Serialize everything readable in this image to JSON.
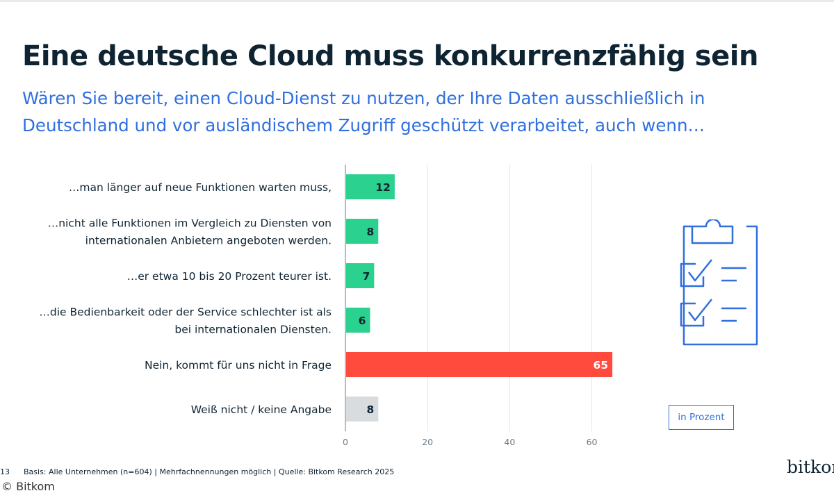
{
  "header": {
    "title": "Eine deutsche Cloud muss konkurrenzfähig sein",
    "subtitle": "Wären Sie bereit, einen Cloud-Dienst zu nutzen, der Ihre Daten ausschließlich in Deutschland und vor ausländischem Zugriff geschützt verarbeitet, auch wenn…"
  },
  "chart_data": {
    "type": "bar",
    "orientation": "horizontal",
    "title": "Eine deutsche Cloud muss konkurrenzfähig sein",
    "categories": [
      [
        "…man länger auf neue Funktionen warten muss,"
      ],
      [
        "…nicht alle Funktionen im Vergleich zu Diensten von",
        "internationalen Anbietern angeboten werden."
      ],
      [
        "…er etwa 10 bis 20 Prozent teurer ist."
      ],
      [
        "…die Bedienbarkeit oder der Service schlechter ist als",
        "bei internationalen Diensten."
      ],
      [
        "Nein, kommt für uns nicht in Frage"
      ],
      [
        "Weiß nicht / keine Angabe"
      ]
    ],
    "values": [
      12,
      8,
      7,
      6,
      65,
      8
    ],
    "bar_colors": [
      "#2bd18e",
      "#2bd18e",
      "#2bd18e",
      "#2bd18e",
      "#ff4b3e",
      "#d9dcdf"
    ],
    "label_colors": [
      "#0f2433",
      "#0f2433",
      "#0f2433",
      "#0f2433",
      "#ffffff",
      "#0f2433"
    ],
    "xlim": [
      0,
      66
    ],
    "xticks": [
      0,
      20,
      40,
      60
    ],
    "grid": true,
    "unit": "in Prozent"
  },
  "footer": {
    "page_number": "13",
    "footnote": "Basis: Alle Unternehmen (n=604) | Mehrfachnennungen möglich | Quelle: Bitkom Research 2025",
    "logo": "bitkom",
    "copyright": "© Bitkom"
  },
  "colors": {
    "title": "#0f2433",
    "accent_blue": "#2f6fe0",
    "green": "#2bd18e",
    "red": "#ff4b3e",
    "grey": "#d9dcdf"
  },
  "icons": [
    "clipboard-checklist-icon"
  ]
}
